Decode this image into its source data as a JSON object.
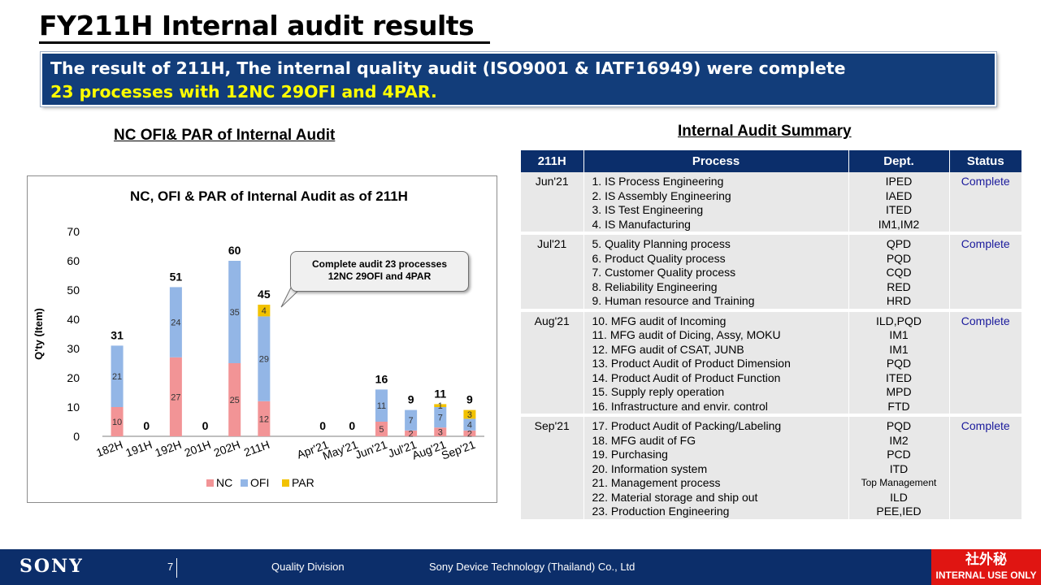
{
  "title": "FY211H Internal audit results",
  "banner": {
    "line1": "The result of 211H, The internal quality audit (ISO9001 & IATF16949) were complete",
    "line2": "23 processes with 12NC 29OFI and 4PAR."
  },
  "chart_heading": "NC OFI& PAR of Internal Audit",
  "table_heading": "Internal Audit Summary",
  "callout": {
    "line1": "Complete audit 23 processes",
    "line2": "12NC 29OFI and 4PAR"
  },
  "chart_data": {
    "type": "bar",
    "stacked": true,
    "title": "NC, OFI & PAR of Internal Audit as of 211H",
    "xlabel": "",
    "ylabel": "Q'ty (Item)",
    "ylim": [
      0,
      70
    ],
    "yticks": [
      0,
      10,
      20,
      30,
      40,
      50,
      60,
      70
    ],
    "categories": [
      "182H",
      "191H",
      "192H",
      "201H",
      "202H",
      "211H",
      "",
      "Apr'21",
      "May'21",
      "Jun'21",
      "Jul'21",
      "Aug'21",
      "Sep'21"
    ],
    "series": [
      {
        "name": "NC",
        "color": "#f29496",
        "values": [
          10,
          0,
          27,
          0,
          25,
          12,
          null,
          0,
          0,
          5,
          2,
          3,
          2
        ]
      },
      {
        "name": "OFI",
        "color": "#93b6e6",
        "values": [
          21,
          0,
          24,
          0,
          35,
          29,
          null,
          0,
          0,
          11,
          7,
          7,
          4
        ]
      },
      {
        "name": "PAR",
        "color": "#f2c200",
        "values": [
          0,
          0,
          0,
          0,
          0,
          4,
          null,
          0,
          0,
          0,
          0,
          1,
          3
        ]
      }
    ],
    "totals": [
      31,
      0,
      51,
      0,
      60,
      45,
      null,
      0,
      0,
      16,
      9,
      11,
      9
    ],
    "legend_position": "bottom",
    "grid": false
  },
  "table": {
    "headers": [
      "211H",
      "Process",
      "Dept.",
      "Status"
    ],
    "rows": [
      {
        "month": "Jun'21",
        "processes": [
          "1. IS Process Engineering",
          "2. IS Assembly Engineering",
          "3. IS Test Engineering",
          "4. IS Manufacturing"
        ],
        "depts": [
          "IPED",
          "IAED",
          "ITED",
          "IM1,IM2"
        ],
        "status": "Complete"
      },
      {
        "month": "Jul'21",
        "processes": [
          "5. Quality Planning process",
          "6. Product Quality process",
          "7. Customer Quality process",
          "8. Reliability  Engineering",
          "9. Human resource and Training"
        ],
        "depts": [
          "QPD",
          "PQD",
          "CQD",
          "RED",
          "HRD"
        ],
        "status": "Complete"
      },
      {
        "month": "Aug'21",
        "processes": [
          "10. MFG audit of Incoming",
          "11. MFG audit of Dicing,  Assy, MOKU",
          "12. MFG audit of CSAT, JUNB",
          "13. Product Audit of Product Dimension",
          "14. Product Audit of Product Function",
          "15. Supply reply operation",
          "16. Infrastructure and envir. control"
        ],
        "depts": [
          "ILD,PQD",
          "IM1",
          "IM1",
          "PQD",
          "ITED",
          "MPD",
          "FTD"
        ],
        "status": "Complete"
      },
      {
        "month": "Sep'21",
        "processes": [
          "17. Product Audit of Packing/Labeling",
          "18. MFG audit of FG",
          "19. Purchasing",
          "20. Information system",
          "21. Management process",
          "22. Material storage and ship out",
          "23. Production Engineering"
        ],
        "depts": [
          "PQD",
          "IM2",
          "PCD",
          "ITD",
          "Top Management",
          "ILD",
          "PEE,IED"
        ],
        "status": "Complete"
      }
    ]
  },
  "footer": {
    "logo": "SONY",
    "page": "7",
    "division": "Quality Division",
    "company": "Sony Device Technology (Thailand) Co., Ltd",
    "badge_kanji": "社外秘",
    "badge_text": "INTERNAL USE ONLY"
  }
}
